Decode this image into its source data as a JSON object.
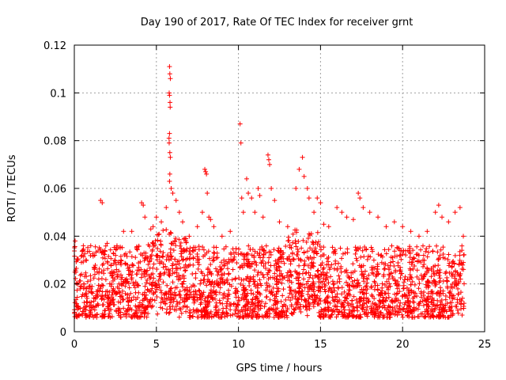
{
  "chart_data": {
    "type": "scatter",
    "title": "Day 190 of 2017, Rate Of TEC Index for receiver grnt",
    "xlabel": "GPS time / hours",
    "ylabel": "ROTI / TECUs",
    "xlim": [
      0,
      25
    ],
    "ylim": [
      0,
      0.12
    ],
    "x_ticks": [
      0,
      5,
      10,
      15,
      20,
      25
    ],
    "x_tick_labels": [
      "0",
      "5",
      "10",
      "15",
      "20",
      "25"
    ],
    "y_ticks": [
      0,
      0.02,
      0.04,
      0.06,
      0.08,
      0.1,
      0.12
    ],
    "y_tick_labels": [
      "0",
      "0.02",
      "0.04",
      "0.06",
      "0.08",
      "0.1",
      "0.12"
    ],
    "grid": true,
    "marker": "+",
    "color": "#ff0000",
    "series": [
      {
        "name": "ROTI",
        "points": [
          [
            0.05,
            0.038
          ],
          [
            0.1,
            0.025
          ],
          [
            0.2,
            0.03
          ],
          [
            0.5,
            0.034
          ],
          [
            1.0,
            0.036
          ],
          [
            1.6,
            0.055
          ],
          [
            1.7,
            0.054
          ],
          [
            2.0,
            0.037
          ],
          [
            2.6,
            0.036
          ],
          [
            3.0,
            0.042
          ],
          [
            3.5,
            0.042
          ],
          [
            4.1,
            0.054
          ],
          [
            4.2,
            0.053
          ],
          [
            4.3,
            0.048
          ],
          [
            4.8,
            0.044
          ],
          [
            5.0,
            0.048
          ],
          [
            5.3,
            0.046
          ],
          [
            5.6,
            0.052
          ],
          [
            5.8,
            0.111
          ],
          [
            5.82,
            0.108
          ],
          [
            5.85,
            0.106
          ],
          [
            5.78,
            0.1
          ],
          [
            5.8,
            0.099
          ],
          [
            5.83,
            0.096
          ],
          [
            5.84,
            0.094
          ],
          [
            5.8,
            0.083
          ],
          [
            5.77,
            0.081
          ],
          [
            5.78,
            0.079
          ],
          [
            5.82,
            0.075
          ],
          [
            5.85,
            0.073
          ],
          [
            5.82,
            0.066
          ],
          [
            5.8,
            0.063
          ],
          [
            5.9,
            0.06
          ],
          [
            6.0,
            0.058
          ],
          [
            6.2,
            0.055
          ],
          [
            6.4,
            0.05
          ],
          [
            6.6,
            0.046
          ],
          [
            7.0,
            0.04
          ],
          [
            7.5,
            0.044
          ],
          [
            7.8,
            0.05
          ],
          [
            7.95,
            0.068
          ],
          [
            8.0,
            0.067
          ],
          [
            8.05,
            0.066
          ],
          [
            8.1,
            0.058
          ],
          [
            8.2,
            0.048
          ],
          [
            8.3,
            0.047
          ],
          [
            8.5,
            0.044
          ],
          [
            9.0,
            0.04
          ],
          [
            9.5,
            0.042
          ],
          [
            10.1,
            0.087
          ],
          [
            10.15,
            0.079
          ],
          [
            10.2,
            0.056
          ],
          [
            10.3,
            0.05
          ],
          [
            10.5,
            0.064
          ],
          [
            10.6,
            0.058
          ],
          [
            10.8,
            0.056
          ],
          [
            11.0,
            0.05
          ],
          [
            11.2,
            0.06
          ],
          [
            11.3,
            0.057
          ],
          [
            11.5,
            0.048
          ],
          [
            11.8,
            0.074
          ],
          [
            11.85,
            0.072
          ],
          [
            11.9,
            0.07
          ],
          [
            12.0,
            0.06
          ],
          [
            12.2,
            0.055
          ],
          [
            12.5,
            0.046
          ],
          [
            13.0,
            0.044
          ],
          [
            13.5,
            0.06
          ],
          [
            13.7,
            0.068
          ],
          [
            13.9,
            0.073
          ],
          [
            14.0,
            0.065
          ],
          [
            14.2,
            0.06
          ],
          [
            14.3,
            0.056
          ],
          [
            14.6,
            0.05
          ],
          [
            14.8,
            0.056
          ],
          [
            15.0,
            0.054
          ],
          [
            15.2,
            0.045
          ],
          [
            15.5,
            0.044
          ],
          [
            16.0,
            0.052
          ],
          [
            16.3,
            0.05
          ],
          [
            16.6,
            0.048
          ],
          [
            17.0,
            0.047
          ],
          [
            17.3,
            0.058
          ],
          [
            17.4,
            0.056
          ],
          [
            17.6,
            0.052
          ],
          [
            18.0,
            0.05
          ],
          [
            18.5,
            0.048
          ],
          [
            19.0,
            0.044
          ],
          [
            19.5,
            0.046
          ],
          [
            20.0,
            0.044
          ],
          [
            20.5,
            0.042
          ],
          [
            21.0,
            0.04
          ],
          [
            21.5,
            0.042
          ],
          [
            22.0,
            0.05
          ],
          [
            22.2,
            0.053
          ],
          [
            22.4,
            0.048
          ],
          [
            22.8,
            0.046
          ],
          [
            23.2,
            0.05
          ],
          [
            23.5,
            0.052
          ],
          [
            23.7,
            0.04
          ]
        ]
      }
    ]
  }
}
